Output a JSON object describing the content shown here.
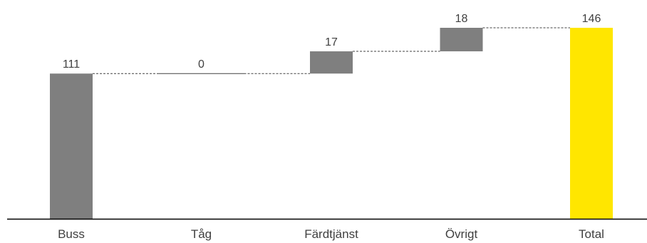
{
  "chart_data": {
    "type": "bar",
    "subtype": "waterfall",
    "title": "",
    "xlabel": "",
    "ylabel": "",
    "categories": [
      "Buss",
      "Tåg",
      "Färdtjänst",
      "Övrigt",
      "Total"
    ],
    "values": [
      111,
      0,
      17,
      18,
      146
    ],
    "labels": [
      "111",
      "0",
      "17",
      "18",
      "146"
    ],
    "bar_kinds": [
      "base",
      "delta",
      "delta",
      "delta",
      "total"
    ],
    "ylim": [
      0,
      146
    ],
    "grid": false,
    "legend": "none",
    "connector_lines": true,
    "colors": {
      "base": "#7f7f7f",
      "delta": "#7f7f7f",
      "total": "#ffe600",
      "connector": "#404040",
      "axis": "#000000",
      "text": "#404040"
    }
  }
}
